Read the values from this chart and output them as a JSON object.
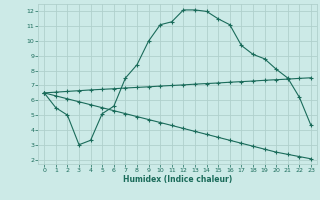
{
  "xlabel": "Humidex (Indice chaleur)",
  "bg_color": "#cceae7",
  "grid_color": "#b0d0cc",
  "line_color": "#1a6b5a",
  "x_ticks": [
    0,
    1,
    2,
    3,
    4,
    5,
    6,
    7,
    8,
    9,
    10,
    11,
    12,
    13,
    14,
    15,
    16,
    17,
    18,
    19,
    20,
    21,
    22,
    23
  ],
  "y_ticks": [
    2,
    3,
    4,
    5,
    6,
    7,
    8,
    9,
    10,
    11,
    12
  ],
  "ylim": [
    1.7,
    12.5
  ],
  "xlim": [
    -0.5,
    23.5
  ],
  "curve_x": [
    0,
    1,
    2,
    3,
    4,
    5,
    6,
    7,
    8,
    9,
    10,
    11,
    12,
    13,
    14,
    15,
    16,
    17,
    18,
    19,
    20,
    21,
    22,
    23
  ],
  "curve_y": [
    6.5,
    5.5,
    5.0,
    3.0,
    3.3,
    5.1,
    5.6,
    7.5,
    8.4,
    10.0,
    11.1,
    11.3,
    12.1,
    12.1,
    12.0,
    11.5,
    11.1,
    9.7,
    9.1,
    8.8,
    8.1,
    7.5,
    6.2,
    4.3
  ],
  "upper_x": [
    0,
    1,
    2,
    3,
    4,
    5,
    6,
    7,
    8,
    9,
    10,
    11,
    12,
    13,
    14,
    15,
    16,
    17,
    18,
    19,
    20,
    21,
    22,
    23
  ],
  "upper_y": [
    6.5,
    6.55,
    6.6,
    6.65,
    6.7,
    6.74,
    6.78,
    6.83,
    6.87,
    6.91,
    6.96,
    7.0,
    7.04,
    7.09,
    7.13,
    7.17,
    7.22,
    7.26,
    7.3,
    7.35,
    7.39,
    7.43,
    7.48,
    7.52
  ],
  "lower_x": [
    0,
    1,
    2,
    3,
    4,
    5,
    6,
    7,
    8,
    9,
    10,
    11,
    12,
    13,
    14,
    15,
    16,
    17,
    18,
    19,
    20,
    21,
    22,
    23
  ],
  "lower_y": [
    6.5,
    6.3,
    6.1,
    5.9,
    5.7,
    5.5,
    5.3,
    5.1,
    4.9,
    4.7,
    4.5,
    4.3,
    4.1,
    3.9,
    3.7,
    3.5,
    3.3,
    3.1,
    2.9,
    2.7,
    2.5,
    2.35,
    2.2,
    2.05
  ],
  "marker": "+",
  "marker_size": 3.0,
  "linewidth": 0.8,
  "label_fontsize": 4.5,
  "xlabel_fontsize": 5.5
}
